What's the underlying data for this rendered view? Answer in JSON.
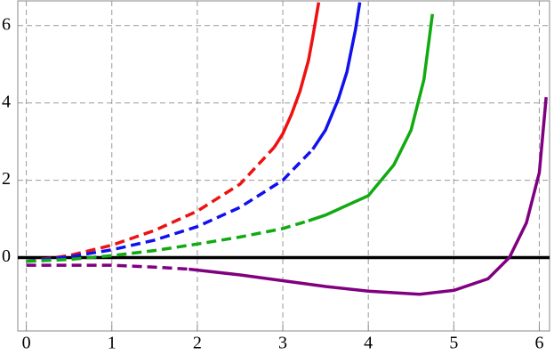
{
  "chart_data": {
    "type": "line",
    "xlim": [
      -0.1,
      6.12
    ],
    "ylim": [
      -1.9,
      6.64
    ],
    "xticks": [
      0,
      1,
      2,
      3,
      4,
      5,
      6
    ],
    "yticks": [
      0,
      2,
      4,
      6
    ],
    "grid": true,
    "zero_line": true,
    "series": [
      {
        "color": "#ee1111",
        "dash": true,
        "x": [
          0,
          0.5,
          1,
          1.5,
          2,
          2.5,
          2.9
        ],
        "values": [
          -0.1,
          0.05,
          0.32,
          0.7,
          1.2,
          1.9,
          2.85
        ]
      },
      {
        "color": "#ee1111",
        "dash": false,
        "x": [
          2.9,
          3,
          3.1,
          3.2,
          3.3,
          3.35,
          3.42
        ],
        "values": [
          2.85,
          3.2,
          3.7,
          4.3,
          5.1,
          5.7,
          6.6
        ]
      },
      {
        "color": "#1111ee",
        "dash": true,
        "x": [
          0,
          0.5,
          1,
          1.5,
          2,
          2.5,
          3,
          3.35
        ],
        "values": [
          -0.1,
          0.02,
          0.2,
          0.45,
          0.8,
          1.3,
          2.0,
          2.8
        ]
      },
      {
        "color": "#1111ee",
        "dash": false,
        "x": [
          3.35,
          3.5,
          3.65,
          3.75,
          3.85,
          3.9
        ],
        "values": [
          2.8,
          3.3,
          4.1,
          4.8,
          5.9,
          6.6
        ]
      },
      {
        "color": "#11aa11",
        "dash": true,
        "x": [
          0,
          0.5,
          1,
          1.5,
          2,
          2.5,
          3,
          3.3
        ],
        "values": [
          -0.1,
          -0.05,
          0.05,
          0.18,
          0.35,
          0.53,
          0.75,
          0.95
        ]
      },
      {
        "color": "#11aa11",
        "dash": false,
        "x": [
          3.3,
          3.5,
          4,
          4.3,
          4.5,
          4.65,
          4.75
        ],
        "values": [
          0.95,
          1.1,
          1.6,
          2.4,
          3.3,
          4.6,
          6.3
        ]
      },
      {
        "color": "#800080",
        "dash": true,
        "x": [
          0,
          0.5,
          1,
          1.5,
          1.9
        ],
        "values": [
          -0.2,
          -0.2,
          -0.2,
          -0.25,
          -0.3
        ]
      },
      {
        "color": "#800080",
        "dash": false,
        "x": [
          1.9,
          2.5,
          3,
          3.5,
          4,
          4.6,
          5,
          5.4,
          5.65,
          5.85,
          6,
          6.08
        ],
        "values": [
          -0.3,
          -0.45,
          -0.6,
          -0.75,
          -0.87,
          -0.95,
          -0.85,
          -0.55,
          0,
          0.9,
          2.2,
          4.15
        ]
      }
    ]
  }
}
